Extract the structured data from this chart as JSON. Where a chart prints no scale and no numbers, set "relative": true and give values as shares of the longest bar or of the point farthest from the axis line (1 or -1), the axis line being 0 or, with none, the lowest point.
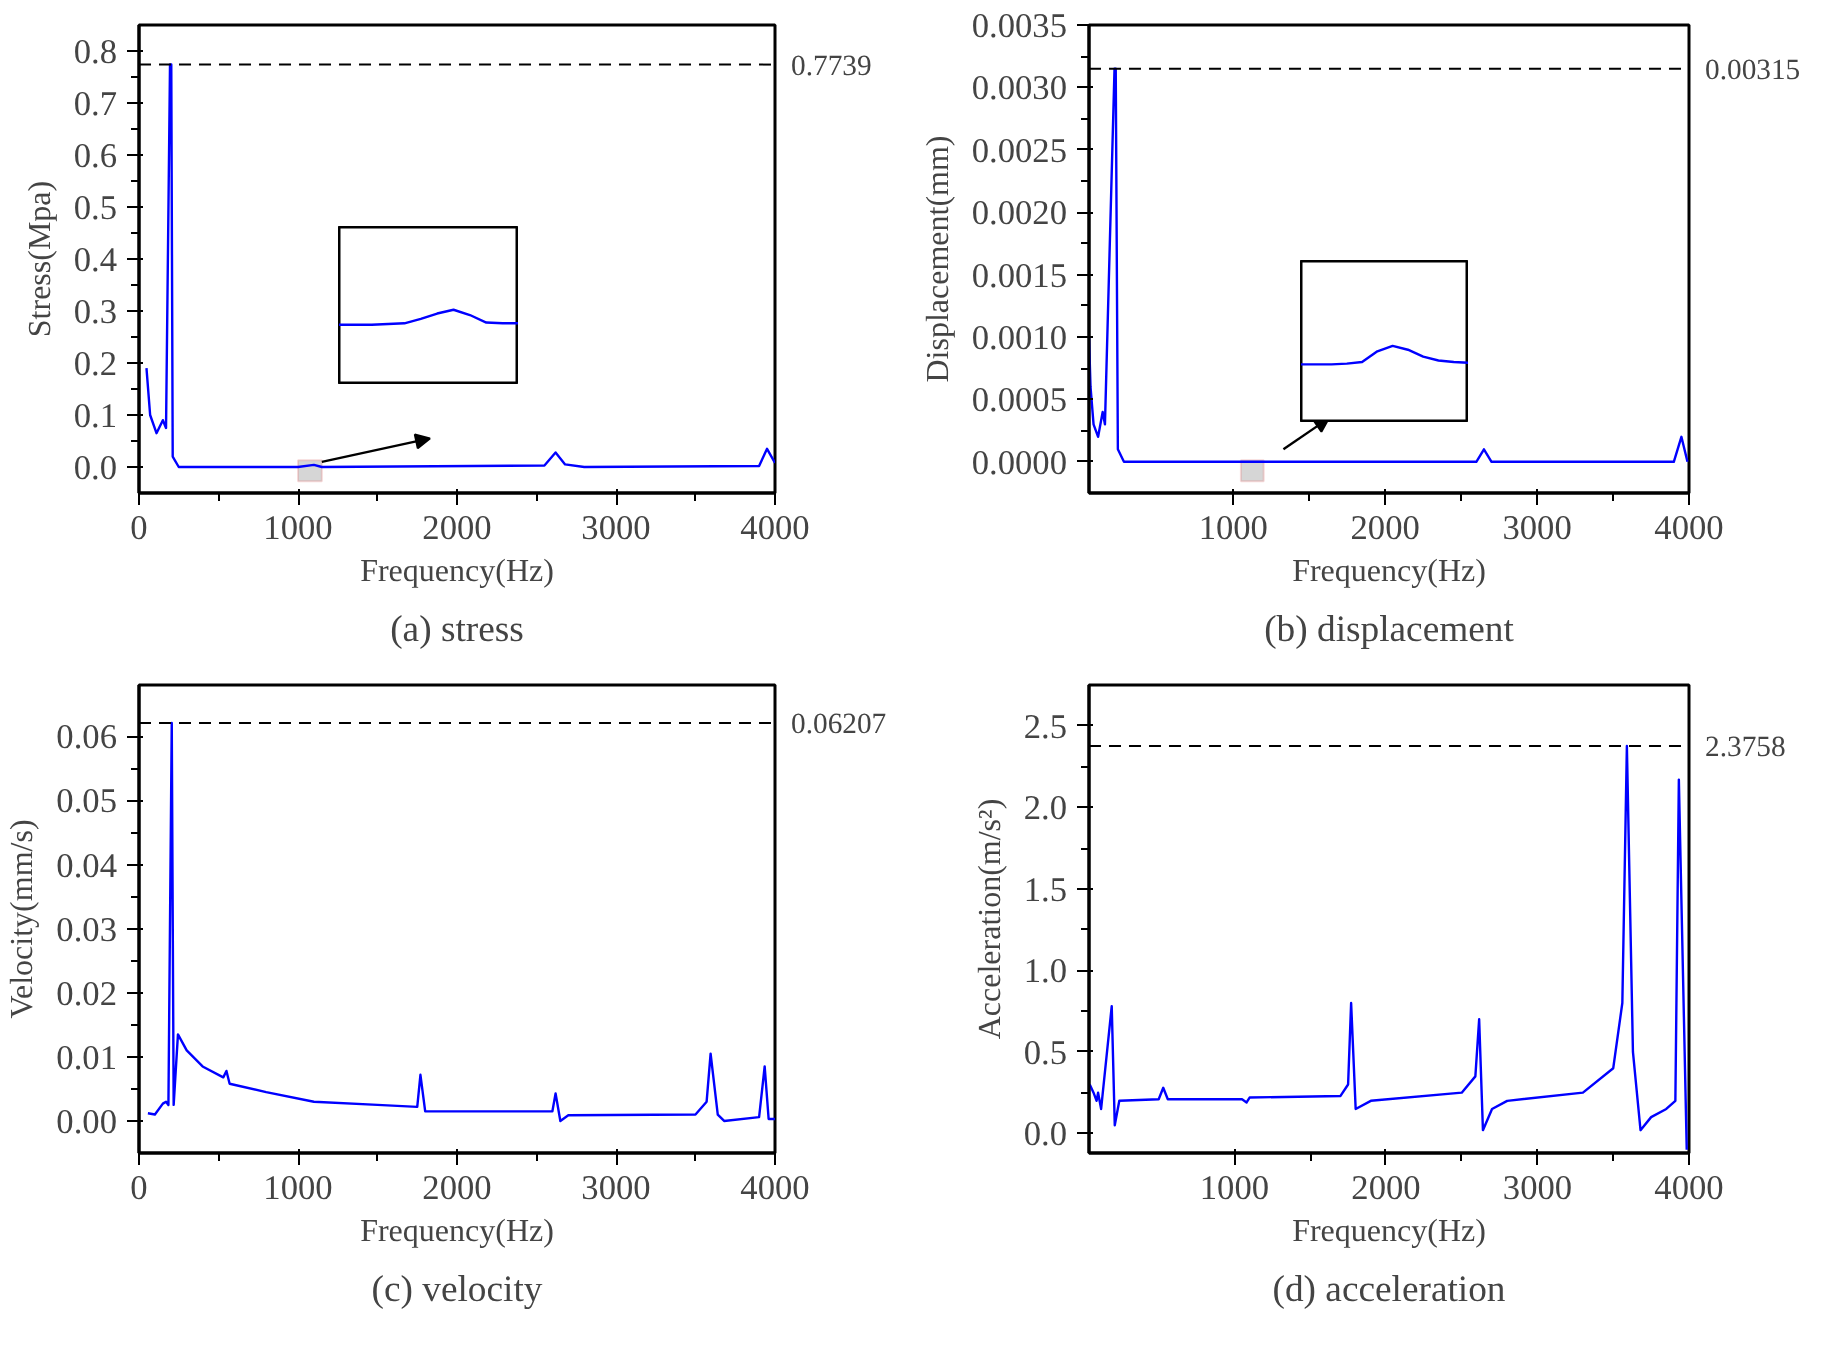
{
  "chart_data": [
    {
      "type": "line",
      "title": "(a) stress",
      "xlabel": "Frequency(Hz)",
      "ylabel": "Stress(Mpa)",
      "xlim": [
        0,
        4000
      ],
      "xticks": [
        0,
        1000,
        2000,
        3000,
        4000
      ],
      "ylim": [
        -0.05,
        0.85
      ],
      "yticks": [
        {
          "value": 0,
          "label": "0.0"
        },
        0.1,
        0.2,
        0.3,
        0.4,
        0.5,
        0.6,
        0.7,
        0.8
      ],
      "grid": false,
      "series": [
        {
          "color": "#0000ff",
          "x": [
            47,
            70,
            110,
            150,
            170,
            195,
            203,
            212,
            250,
            1000,
            1100,
            1150,
            2550,
            2620,
            2680,
            2800,
            3900,
            3950,
            4000
          ],
          "values": [
            0.19,
            0.1,
            0.065,
            0.09,
            0.075,
            0.7739,
            0.7739,
            0.02,
            0.0,
            0.0,
            0.004,
            0.0,
            0.003,
            0.028,
            0.005,
            0.0,
            0.002,
            0.035,
            0.008
          ]
        }
      ],
      "ref_lines": [
        {
          "axis": "y",
          "value": 0.7739,
          "label": "0.7739",
          "color": "#000000",
          "line_style": "dashed"
        }
      ],
      "bands": [
        {
          "axis": "x",
          "from": 1000,
          "to": 1150,
          "color": "#cccccc"
        }
      ]
    },
    {
      "type": "line",
      "relative": true,
      "categories": [
        null,
        null,
        null,
        null,
        null,
        null,
        null,
        null,
        null,
        null,
        null,
        null
      ],
      "series": [
        {
          "color": "#0000ff",
          "values": [
            0.8,
            0.8,
            0.8,
            0.81,
            0.82,
            0.88,
            0.95,
            1.0,
            0.93,
            0.83,
            0.82,
            0.82
          ]
        }
      ]
    },
    {
      "type": "line",
      "title": "(b) displacement",
      "xlabel": "Frequency(Hz)",
      "ylabel": "Displacement(mm)",
      "xlim": [
        50,
        4000
      ],
      "xticks": [
        1000,
        2000,
        3000,
        4000
      ],
      "ylim": [
        -0.00025,
        0.0035
      ],
      "yticks": [
        {
          "value": 0,
          "label": "0.0000"
        },
        {
          "value": 0.0005,
          "label": "0.0005"
        },
        {
          "value": 0.001,
          "label": "0.0010"
        },
        {
          "value": 0.0015,
          "label": "0.0015"
        },
        {
          "value": 0.002,
          "label": "0.0020"
        },
        {
          "value": 0.0025,
          "label": "0.0025"
        },
        {
          "value": 0.003,
          "label": "0.0030"
        },
        {
          "value": 0.0035,
          "label": "0.0035"
        }
      ],
      "grid": false,
      "series": [
        {
          "color": "#0000ff",
          "x": [
            50,
            60,
            80,
            110,
            140,
            155,
            218,
            226,
            240,
            280,
            1050,
            1100,
            1150,
            2600,
            2650,
            2700,
            3900,
            3950,
            3990
          ],
          "values": [
            0.001,
            0.0006,
            0.0003,
            0.0002,
            0.0004,
            0.0003,
            0.00315,
            0.00315,
            0.0001,
            0.0,
            0.0,
            0.0,
            0.0,
            0.0,
            0.0001,
            0.0,
            0.0,
            0.0002,
            0.0
          ]
        }
      ],
      "bands": [
        {
          "axis": "x",
          "from": 1050,
          "to": 1200,
          "color": "#cccccc"
        }
      ],
      "ref_lines": [
        {
          "axis": "y",
          "value": 0.00315,
          "label": "0.00315",
          "color": "#000000",
          "line_style": "dashed"
        }
      ]
    },
    {
      "type": "line",
      "relative": true,
      "categories": [
        null,
        null,
        null,
        null,
        null,
        null,
        null,
        null,
        null,
        null,
        null,
        null
      ],
      "series": [
        {
          "color": "#0000ff",
          "values": [
            0.76,
            0.76,
            0.76,
            0.77,
            0.79,
            0.93,
            1.0,
            0.95,
            0.86,
            0.81,
            0.79,
            0.78
          ]
        }
      ]
    },
    {
      "type": "line",
      "title": "(c) velocity",
      "xlabel": "Frequency(Hz)",
      "ylabel": "Velocity(mm/s)",
      "xlim": [
        0,
        4000
      ],
      "xticks": [
        0,
        1000,
        2000,
        3000,
        4000
      ],
      "ylim": [
        -0.005,
        0.068
      ],
      "yticks": [
        {
          "value": 0,
          "label": "0.00"
        },
        {
          "value": 0.01,
          "label": "0.01"
        },
        {
          "value": 0.02,
          "label": "0.02"
        },
        {
          "value": 0.03,
          "label": "0.03"
        },
        {
          "value": 0.04,
          "label": "0.04"
        },
        {
          "value": 0.05,
          "label": "0.05"
        },
        {
          "value": 0.06,
          "label": "0.06"
        }
      ],
      "grid": false,
      "series": [
        {
          "color": "#0000ff",
          "x": [
            56,
            100,
            150,
            170,
            185,
            206,
            218,
            245,
            300,
            400,
            530,
            550,
            570,
            800,
            1100,
            1500,
            1750,
            1770,
            1800,
            2600,
            2620,
            2650,
            2700,
            3500,
            3570,
            3595,
            3640,
            3680,
            3900,
            3935,
            3960,
            4000
          ],
          "values": [
            0.0012,
            0.001,
            0.0027,
            0.003,
            0.0025,
            0.06207,
            0.0025,
            0.0135,
            0.011,
            0.0085,
            0.0068,
            0.0078,
            0.0058,
            0.0045,
            0.003,
            0.0025,
            0.0022,
            0.0072,
            0.0015,
            0.0015,
            0.0043,
            0.0,
            0.0009,
            0.001,
            0.003,
            0.0105,
            0.001,
            0.0,
            0.0006,
            0.0085,
            0.0003,
            0.0003
          ]
        }
      ],
      "ref_lines": [
        {
          "axis": "y",
          "value": 0.06207,
          "label": "0.06207",
          "color": "#000000",
          "line_style": "dashed"
        }
      ]
    },
    {
      "type": "line",
      "title": "(d) acceleration",
      "xlabel": "Frequency(Hz)",
      "ylabel": "Acceleration(m/s²)",
      "xlim": [
        40,
        4000
      ],
      "xticks": [
        1000,
        2000,
        3000,
        4000
      ],
      "ylim": [
        -0.12,
        2.75
      ],
      "yticks": [
        {
          "value": 0,
          "label": "0.0"
        },
        0.5,
        {
          "value": 1,
          "label": "1.0"
        },
        1.5,
        {
          "value": 2,
          "label": "2.0"
        },
        2.5
      ],
      "grid": false,
      "series": [
        {
          "color": "#0000ff",
          "x": [
            45,
            70,
            90,
            100,
            120,
            190,
            210,
            240,
            500,
            530,
            560,
            1050,
            1080,
            1100,
            1700,
            1750,
            1770,
            1800,
            1900,
            2500,
            2590,
            2615,
            2640,
            2700,
            2800,
            3300,
            3500,
            3560,
            3590,
            3630,
            3680,
            3750,
            3850,
            3910,
            3933,
            3985
          ],
          "values": [
            0.3,
            0.25,
            0.2,
            0.25,
            0.15,
            0.78,
            0.05,
            0.2,
            0.21,
            0.28,
            0.21,
            0.21,
            0.19,
            0.22,
            0.23,
            0.3,
            0.8,
            0.15,
            0.2,
            0.25,
            0.35,
            0.7,
            0.02,
            0.15,
            0.2,
            0.25,
            0.4,
            0.8,
            2.3758,
            0.5,
            0.02,
            0.1,
            0.15,
            0.2,
            2.17,
            -0.1
          ]
        }
      ],
      "ref_lines": [
        {
          "axis": "y",
          "value": 2.3758,
          "label": "2.3758",
          "color": "#000000",
          "line_style": "dashed"
        }
      ]
    }
  ]
}
